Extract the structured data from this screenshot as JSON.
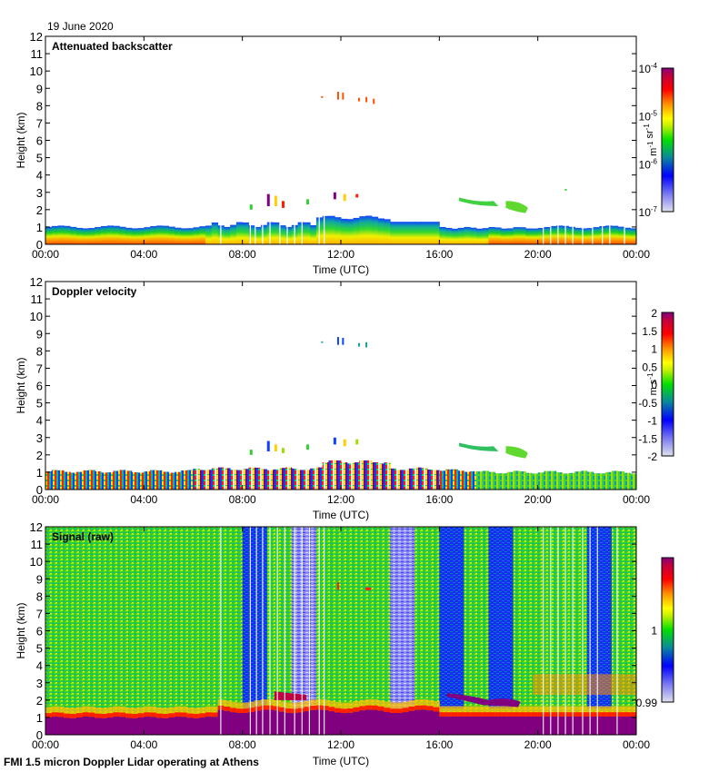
{
  "header": {
    "date": "19 June 2020",
    "footer": "FMI 1.5 micron Doppler Lidar operating at Athens"
  },
  "chart_data": [
    {
      "type": "heatmap",
      "title": "Attenuated backscatter",
      "xlabel": "Time (UTC)",
      "ylabel": "Height (km)",
      "xticks": [
        "00:00",
        "04:00",
        "08:00",
        "12:00",
        "16:00",
        "20:00",
        "00:00"
      ],
      "xlim_hours": [
        0,
        24
      ],
      "yticks": [
        "0",
        "1",
        "2",
        "3",
        "4",
        "5",
        "6",
        "7",
        "8",
        "9",
        "10",
        "11",
        "12"
      ],
      "ylim": [
        0,
        12
      ],
      "colorbar": {
        "scale": "log",
        "units": "m-1 sr-1",
        "range": [
          1e-07,
          0.0001
        ],
        "tick_labels": [
          "10-7",
          "10-6",
          "10-5",
          "10-4"
        ],
        "tick_values": [
          1e-07,
          1e-06,
          1e-05,
          0.0001
        ]
      },
      "features": [
        {
          "name": "boundary layer",
          "time_start": 0,
          "time_end": 24,
          "top_km": 1.0,
          "note": "top ~1 km, rising to ~1.6 km 11:00-14:00; strong near-surface backscatter (orange/red) 00:00-06:30 and 18:00-24:00"
        },
        {
          "name": "cirrus",
          "time_start": 11.2,
          "time_end": 13.6,
          "height_km": [
            8.2,
            8.8
          ],
          "level": "~3e-5"
        },
        {
          "name": "low cloud fragments",
          "time_start": 8.3,
          "time_end": 12.6,
          "height_km": [
            2.0,
            3.0
          ]
        },
        {
          "name": "elevated aerosol layer",
          "time_start": 16.8,
          "time_end": 19.6,
          "height_km": [
            1.7,
            2.8
          ],
          "level": "~2e-6"
        }
      ],
      "data_gaps_hours": [
        7.1,
        8.3,
        8.5,
        8.8,
        9.1,
        9.5,
        9.8,
        10.1,
        10.4,
        11.1,
        11.3,
        20.2,
        20.5,
        20.8,
        21.1,
        21.4,
        21.8,
        22.2,
        22.6,
        22.9,
        23.5
      ]
    },
    {
      "type": "heatmap",
      "title": "Doppler velocity",
      "xlabel": "Time (UTC)",
      "ylabel": "Height (km)",
      "xticks": [
        "00:00",
        "04:00",
        "08:00",
        "12:00",
        "16:00",
        "20:00",
        "00:00"
      ],
      "xlim_hours": [
        0,
        24
      ],
      "yticks": [
        "0",
        "1",
        "2",
        "3",
        "4",
        "5",
        "6",
        "7",
        "8",
        "9",
        "10",
        "11",
        "12"
      ],
      "ylim": [
        0,
        12
      ],
      "colorbar": {
        "scale": "linear",
        "units": "m s-1",
        "range": [
          -2,
          2
        ],
        "tick_labels": [
          "-2",
          "-1.5",
          "-1",
          "-0.5",
          "0",
          "0.5",
          "1",
          "1.5",
          "2"
        ],
        "tick_values": [
          -2,
          -1.5,
          -1,
          -0.5,
          0,
          0.5,
          1,
          1.5,
          2
        ]
      },
      "features": [
        {
          "name": "boundary layer",
          "time_start": 0,
          "time_end": 24,
          "top_km": 1.0,
          "note": "mixed velocities; strong up/down drafts (-2 to +2) 06:00-16:00, mostly near 0 (green) after 17:00"
        },
        {
          "name": "cirrus",
          "time_start": 11.2,
          "time_end": 13.6,
          "height_km": [
            8.2,
            8.8
          ],
          "level": "~-1.2"
        },
        {
          "name": "elevated aerosol layer",
          "time_start": 16.8,
          "time_end": 19.6,
          "height_km": [
            1.7,
            2.8
          ],
          "level": "~-0.3"
        }
      ]
    },
    {
      "type": "heatmap",
      "title": "Signal (raw)",
      "xlabel": "Time (UTC)",
      "ylabel": "Height (km)",
      "xticks": [
        "00:00",
        "04:00",
        "08:00",
        "12:00",
        "16:00",
        "20:00",
        "00:00"
      ],
      "xlim_hours": [
        0,
        24
      ],
      "yticks": [
        "0",
        "1",
        "2",
        "3",
        "4",
        "5",
        "6",
        "7",
        "8",
        "9",
        "10",
        "11",
        "12"
      ],
      "ylim": [
        0,
        12
      ],
      "colorbar": {
        "scale": "linear",
        "units": "",
        "range": [
          0.99,
          1.01
        ],
        "tick_labels": [
          "0.99",
          "1"
        ],
        "tick_values": [
          0.99,
          1.0
        ]
      },
      "features": [
        {
          "name": "near-surface strong signal",
          "time_start": 0,
          "time_end": 24,
          "top_km": 1.0,
          "level": "max"
        },
        {
          "name": "low-signal band",
          "time_start": 8.0,
          "time_end": 9.0,
          "level": "~0.9955"
        },
        {
          "name": "low-signal band",
          "time_start": 10.0,
          "time_end": 11.0,
          "level": "~0.992"
        },
        {
          "name": "low-signal band",
          "time_start": 14.0,
          "time_end": 15.0,
          "level": "~0.992"
        },
        {
          "name": "low-signal band",
          "time_start": 16.0,
          "time_end": 17.0,
          "level": "~0.9955"
        },
        {
          "name": "low-signal band",
          "time_start": 18.0,
          "time_end": 19.0,
          "level": "~0.9955"
        },
        {
          "name": "low-signal band",
          "time_start": 22.0,
          "time_end": 23.0,
          "level": "~0.9955"
        },
        {
          "name": "elevated aerosol layer",
          "time_start": 16.3,
          "time_end": 19.5,
          "height_km": [
            1.7,
            2.6
          ],
          "level": "max"
        }
      ]
    }
  ]
}
